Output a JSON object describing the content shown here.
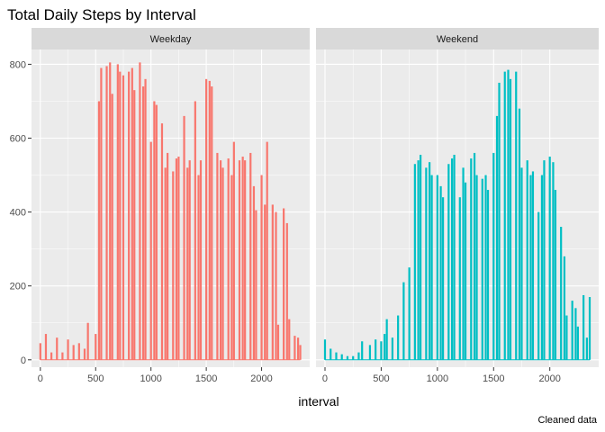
{
  "chart_data": {
    "type": "bar",
    "title": "Total Daily Steps by Interval",
    "xlabel": "interval",
    "ylabel": "",
    "caption": "Cleaned data",
    "xlim": [
      -80,
      2435
    ],
    "ylim": [
      -20,
      840
    ],
    "x_ticks": [
      0,
      500,
      1000,
      1500,
      2000
    ],
    "y_ticks": [
      0,
      200,
      400,
      600,
      800
    ],
    "x_tick_labels": [
      "0",
      "500",
      "1000",
      "1500",
      "2000"
    ],
    "y_tick_labels": [
      "0",
      "200",
      "400",
      "600",
      "800"
    ],
    "grid": true,
    "legend": "none",
    "panels": [
      {
        "label": "Weekday",
        "color": "#F8766D",
        "series": [
          {
            "x": 0,
            "y": 45
          },
          {
            "x": 50,
            "y": 70
          },
          {
            "x": 100,
            "y": 20
          },
          {
            "x": 150,
            "y": 60
          },
          {
            "x": 200,
            "y": 20
          },
          {
            "x": 250,
            "y": 55
          },
          {
            "x": 300,
            "y": 40
          },
          {
            "x": 350,
            "y": 45
          },
          {
            "x": 400,
            "y": 30
          },
          {
            "x": 430,
            "y": 100
          },
          {
            "x": 500,
            "y": 70
          },
          {
            "x": 530,
            "y": 700
          },
          {
            "x": 550,
            "y": 790
          },
          {
            "x": 600,
            "y": 795
          },
          {
            "x": 630,
            "y": 805
          },
          {
            "x": 650,
            "y": 720
          },
          {
            "x": 700,
            "y": 800
          },
          {
            "x": 720,
            "y": 780
          },
          {
            "x": 750,
            "y": 770
          },
          {
            "x": 800,
            "y": 780
          },
          {
            "x": 830,
            "y": 790
          },
          {
            "x": 850,
            "y": 730
          },
          {
            "x": 900,
            "y": 805
          },
          {
            "x": 930,
            "y": 740
          },
          {
            "x": 950,
            "y": 760
          },
          {
            "x": 1000,
            "y": 590
          },
          {
            "x": 1030,
            "y": 700
          },
          {
            "x": 1050,
            "y": 690
          },
          {
            "x": 1100,
            "y": 640
          },
          {
            "x": 1130,
            "y": 520
          },
          {
            "x": 1150,
            "y": 560
          },
          {
            "x": 1200,
            "y": 510
          },
          {
            "x": 1230,
            "y": 545
          },
          {
            "x": 1250,
            "y": 550
          },
          {
            "x": 1300,
            "y": 660
          },
          {
            "x": 1330,
            "y": 520
          },
          {
            "x": 1350,
            "y": 540
          },
          {
            "x": 1400,
            "y": 700
          },
          {
            "x": 1430,
            "y": 500
          },
          {
            "x": 1450,
            "y": 540
          },
          {
            "x": 1500,
            "y": 760
          },
          {
            "x": 1530,
            "y": 755
          },
          {
            "x": 1550,
            "y": 740
          },
          {
            "x": 1600,
            "y": 560
          },
          {
            "x": 1630,
            "y": 540
          },
          {
            "x": 1650,
            "y": 520
          },
          {
            "x": 1700,
            "y": 545
          },
          {
            "x": 1730,
            "y": 500
          },
          {
            "x": 1750,
            "y": 590
          },
          {
            "x": 1800,
            "y": 540
          },
          {
            "x": 1830,
            "y": 550
          },
          {
            "x": 1850,
            "y": 540
          },
          {
            "x": 1900,
            "y": 560
          },
          {
            "x": 1930,
            "y": 470
          },
          {
            "x": 1950,
            "y": 405
          },
          {
            "x": 2000,
            "y": 500
          },
          {
            "x": 2030,
            "y": 420
          },
          {
            "x": 2050,
            "y": 590
          },
          {
            "x": 2100,
            "y": 420
          },
          {
            "x": 2130,
            "y": 400
          },
          {
            "x": 2150,
            "y": 95
          },
          {
            "x": 2200,
            "y": 410
          },
          {
            "x": 2230,
            "y": 370
          },
          {
            "x": 2250,
            "y": 110
          },
          {
            "x": 2300,
            "y": 65
          },
          {
            "x": 2330,
            "y": 60
          },
          {
            "x": 2350,
            "y": 40
          }
        ]
      },
      {
        "label": "Weekend",
        "color": "#00BFC4",
        "series": [
          {
            "x": 0,
            "y": 55
          },
          {
            "x": 50,
            "y": 30
          },
          {
            "x": 100,
            "y": 20
          },
          {
            "x": 150,
            "y": 15
          },
          {
            "x": 200,
            "y": 10
          },
          {
            "x": 250,
            "y": 10
          },
          {
            "x": 300,
            "y": 20
          },
          {
            "x": 330,
            "y": 50
          },
          {
            "x": 400,
            "y": 40
          },
          {
            "x": 450,
            "y": 55
          },
          {
            "x": 500,
            "y": 50
          },
          {
            "x": 530,
            "y": 70
          },
          {
            "x": 550,
            "y": 110
          },
          {
            "x": 600,
            "y": 60
          },
          {
            "x": 650,
            "y": 120
          },
          {
            "x": 700,
            "y": 210
          },
          {
            "x": 750,
            "y": 250
          },
          {
            "x": 800,
            "y": 530
          },
          {
            "x": 830,
            "y": 540
          },
          {
            "x": 850,
            "y": 555
          },
          {
            "x": 900,
            "y": 520
          },
          {
            "x": 930,
            "y": 535
          },
          {
            "x": 950,
            "y": 500
          },
          {
            "x": 1000,
            "y": 500
          },
          {
            "x": 1030,
            "y": 470
          },
          {
            "x": 1050,
            "y": 440
          },
          {
            "x": 1100,
            "y": 530
          },
          {
            "x": 1130,
            "y": 545
          },
          {
            "x": 1150,
            "y": 555
          },
          {
            "x": 1200,
            "y": 440
          },
          {
            "x": 1230,
            "y": 520
          },
          {
            "x": 1250,
            "y": 480
          },
          {
            "x": 1300,
            "y": 545
          },
          {
            "x": 1330,
            "y": 560
          },
          {
            "x": 1350,
            "y": 500
          },
          {
            "x": 1400,
            "y": 490
          },
          {
            "x": 1430,
            "y": 500
          },
          {
            "x": 1450,
            "y": 460
          },
          {
            "x": 1500,
            "y": 560
          },
          {
            "x": 1530,
            "y": 660
          },
          {
            "x": 1550,
            "y": 750
          },
          {
            "x": 1600,
            "y": 780
          },
          {
            "x": 1630,
            "y": 785
          },
          {
            "x": 1650,
            "y": 760
          },
          {
            "x": 1700,
            "y": 780
          },
          {
            "x": 1730,
            "y": 680
          },
          {
            "x": 1750,
            "y": 520
          },
          {
            "x": 1800,
            "y": 540
          },
          {
            "x": 1830,
            "y": 500
          },
          {
            "x": 1850,
            "y": 510
          },
          {
            "x": 1900,
            "y": 400
          },
          {
            "x": 1930,
            "y": 500
          },
          {
            "x": 1950,
            "y": 540
          },
          {
            "x": 2000,
            "y": 550
          },
          {
            "x": 2030,
            "y": 535
          },
          {
            "x": 2050,
            "y": 460
          },
          {
            "x": 2100,
            "y": 360
          },
          {
            "x": 2130,
            "y": 280
          },
          {
            "x": 2150,
            "y": 120
          },
          {
            "x": 2200,
            "y": 160
          },
          {
            "x": 2230,
            "y": 140
          },
          {
            "x": 2250,
            "y": 90
          },
          {
            "x": 2300,
            "y": 175
          },
          {
            "x": 2330,
            "y": 60
          },
          {
            "x": 2355,
            "y": 170
          }
        ]
      }
    ]
  }
}
